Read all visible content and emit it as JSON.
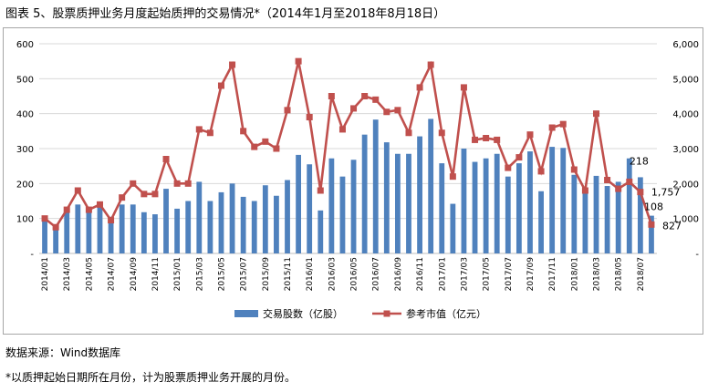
{
  "title": "图表 5、股票质押业务月度起始质押的交易情况*（2014年1月至2018年8月18日）",
  "source_note": "数据来源：Wind数据库",
  "footnote": "*以质押起始日期所在月份，计为股票质押业务开展的月份。",
  "chart_data": {
    "type": "bar+line",
    "categories": [
      "2014/01",
      "2014/02",
      "2014/03",
      "2014/04",
      "2014/05",
      "2014/06",
      "2014/07",
      "2014/08",
      "2014/09",
      "2014/10",
      "2014/11",
      "2014/12",
      "2015/01",
      "2015/02",
      "2015/03",
      "2015/04",
      "2015/05",
      "2015/06",
      "2015/07",
      "2015/08",
      "2015/09",
      "2015/10",
      "2015/11",
      "2015/12",
      "2016/01",
      "2016/02",
      "2016/03",
      "2016/04",
      "2016/05",
      "2016/06",
      "2016/07",
      "2016/08",
      "2016/09",
      "2016/10",
      "2016/11",
      "2016/12",
      "2017/01",
      "2017/02",
      "2017/03",
      "2017/04",
      "2017/05",
      "2017/06",
      "2017/07",
      "2017/08",
      "2017/09",
      "2017/10",
      "2017/11",
      "2017/12",
      "2018/01",
      "2018/02",
      "2018/03",
      "2018/04",
      "2018/05",
      "2018/06",
      "2018/07",
      "2018/08"
    ],
    "tick_labels": [
      "2014/01",
      "2014/03",
      "2014/05",
      "2014/07",
      "2014/09",
      "2014/11",
      "2015/01",
      "2015/03",
      "2015/05",
      "2015/07",
      "2015/09",
      "2015/11",
      "2016/01",
      "2016/03",
      "2016/05",
      "2016/07",
      "2016/09",
      "2016/11",
      "2017/01",
      "2017/03",
      "2017/05",
      "2017/07",
      "2017/09",
      "2017/11",
      "2018/01",
      "2018/03",
      "2018/05",
      "2018/07"
    ],
    "series": [
      {
        "name": "交易股数（亿股）",
        "kind": "bar",
        "axis": "left",
        "color": "#4f81bd",
        "values": [
          100,
          80,
          120,
          140,
          125,
          135,
          105,
          140,
          140,
          118,
          112,
          185,
          128,
          150,
          205,
          150,
          175,
          200,
          162,
          150,
          195,
          165,
          210,
          282,
          255,
          123,
          272,
          220,
          268,
          340,
          383,
          318,
          285,
          285,
          335,
          385,
          258,
          142,
          300,
          262,
          272,
          285,
          220,
          258,
          292,
          178,
          305,
          302,
          225,
          180,
          222,
          193,
          205,
          272,
          218,
          108
        ]
      },
      {
        "name": "参考市值（亿元）",
        "kind": "line",
        "axis": "right",
        "color": "#c0504d",
        "values": [
          1000,
          750,
          1250,
          1800,
          1250,
          1400,
          950,
          1600,
          2000,
          1700,
          1700,
          2700,
          2000,
          2000,
          3550,
          3450,
          4800,
          5400,
          3500,
          3050,
          3200,
          3000,
          4100,
          5500,
          3900,
          1800,
          4500,
          3550,
          4150,
          4500,
          4400,
          4050,
          4100,
          3450,
          4750,
          5400,
          3450,
          2200,
          4750,
          3250,
          3300,
          3250,
          2450,
          2750,
          3400,
          2350,
          3600,
          3700,
          2400,
          1800,
          4000,
          2100,
          1850,
          2050,
          1757,
          827
        ]
      }
    ],
    "y_left": {
      "min": 0,
      "max": 600,
      "ticks": [
        "-",
        "100",
        "200",
        "300",
        "400",
        "500",
        "600"
      ]
    },
    "y_right": {
      "min": 0,
      "max": 6000,
      "ticks": [
        "-",
        "1,000",
        "2,000",
        "3,000",
        "4,000",
        "5,000",
        "6,000"
      ]
    },
    "data_labels": [
      "218",
      "108",
      "1,757",
      "827"
    ],
    "legend_position": "bottom",
    "grid": true
  }
}
